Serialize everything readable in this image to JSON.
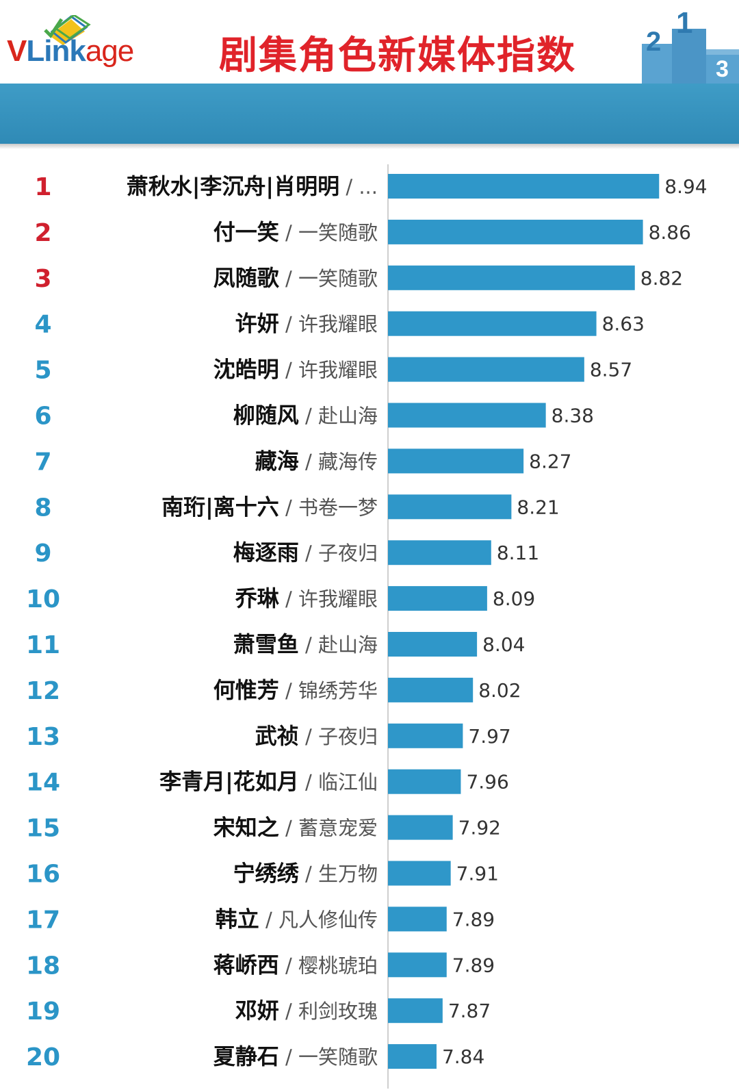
{
  "header": {
    "logo_text_v": "V",
    "logo_text_link": "Link",
    "logo_text_age": "age",
    "title": "剧集角色新媒体指数"
  },
  "colors": {
    "bar": "#2f97c9",
    "rank_top3": "#d0202e",
    "rank_rest": "#2b95c7",
    "band": "#3393bf"
  },
  "chart_data": {
    "type": "bar",
    "orientation": "horizontal",
    "xlim": [
      7.6,
      9.0
    ],
    "ranks": [
      1,
      2,
      3,
      4,
      5,
      6,
      7,
      8,
      9,
      10,
      11,
      12,
      13,
      14,
      15,
      16,
      17,
      18,
      19,
      20
    ],
    "characters": [
      "萧秋水|李沉舟|肖明明",
      "付一笑",
      "凤随歌",
      "许妍",
      "沈皓明",
      "柳随风",
      "藏海",
      "南珩|离十六",
      "梅逐雨",
      "乔琳",
      "萧雪鱼",
      "何惟芳",
      "武祯",
      "李青月|花如月",
      "宋知之",
      "宁绣绣",
      "韩立",
      "蒋峤西",
      "邓妍",
      "夏静石"
    ],
    "shows": [
      "...",
      "一笑随歌",
      "一笑随歌",
      "许我耀眼",
      "许我耀眼",
      "赴山海",
      "藏海传",
      "书卷一梦",
      "子夜归",
      "许我耀眼",
      "赴山海",
      "锦绣芳华",
      "子夜归",
      "临江仙",
      "蓄意宠爱",
      "生万物",
      "凡人修仙传",
      "樱桃琥珀",
      "利剑玫瑰",
      "一笑随歌"
    ],
    "values": [
      8.94,
      8.86,
      8.82,
      8.63,
      8.57,
      8.38,
      8.27,
      8.21,
      8.11,
      8.09,
      8.04,
      8.02,
      7.97,
      7.96,
      7.92,
      7.91,
      7.89,
      7.89,
      7.87,
      7.84
    ],
    "value_labels": [
      "8.94",
      "8.86",
      "8.82",
      "8.63",
      "8.57",
      "8.38",
      "8.27",
      "8.21",
      "8.11",
      "8.09",
      "8.04",
      "8.02",
      "7.97",
      "7.96",
      "7.92",
      "7.91",
      "7.89",
      "7.89",
      "7.87",
      "7.84"
    ]
  }
}
